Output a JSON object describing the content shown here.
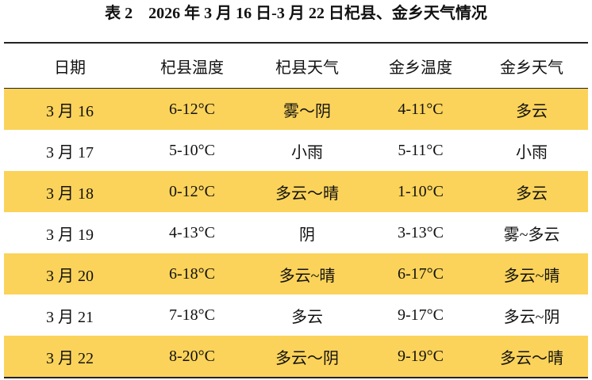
{
  "title": "表 2　2026 年 3 月 16 日-3 月 22 日杞县、金乡天气情况",
  "table": {
    "header": [
      "日期",
      "杞县温度",
      "杞县天气",
      "金乡温度",
      "金乡天气"
    ],
    "rows": [
      [
        "3 月 16",
        "6-12°C",
        "雾～阴",
        "4-11°C",
        "多云"
      ],
      [
        "3 月 17",
        "5-10°C",
        "小雨",
        "5-11°C",
        "小雨"
      ],
      [
        "3 月 18",
        "0-12°C",
        "多云～晴",
        "1-10°C",
        "多云"
      ],
      [
        "3 月 19",
        "4-13°C",
        "阴",
        "3-13°C",
        "雾~多云"
      ],
      [
        "3 月 20",
        "6-18°C",
        "多云~晴",
        "6-17°C",
        "多云~晴"
      ],
      [
        "3 月 21",
        "7-18°C",
        "多云",
        "9-17°C",
        "多云~阴"
      ],
      [
        "3 月 22",
        "8-20°C",
        "多云～阴",
        "9-19°C",
        "多云～晴"
      ]
    ]
  }
}
